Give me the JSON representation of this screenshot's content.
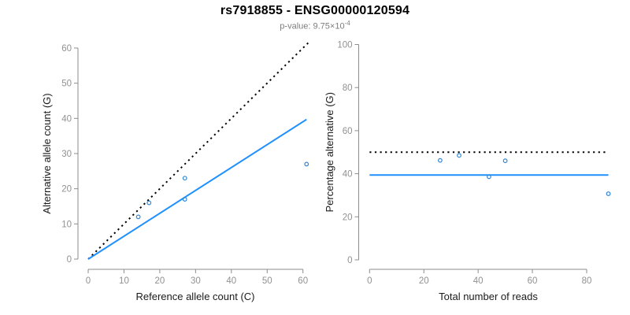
{
  "header": {
    "title": "rs7918855 - ENSG00000120594",
    "subtitle_base": "p-value: 9.75×10",
    "subtitle_exponent": "-4"
  },
  "colors": {
    "accent_blue": "#1E90FF",
    "point_blue": "#2E86D8",
    "dotted_black": "#000000",
    "axis_gray": "#8C8C8C",
    "tick_label_gray": "#919191",
    "axis_title_color": "#1a1a1a",
    "subtitle_gray": "#7d7d7d",
    "background": "#ffffff"
  },
  "chart_data": [
    {
      "type": "scatter",
      "name": "allele-count-panel",
      "xlabel": "Reference allele count (C)",
      "ylabel": "Alternative allele count (G)",
      "xlim": [
        0,
        60
      ],
      "ylim": [
        0,
        60
      ],
      "xticks": [
        0,
        10,
        20,
        30,
        40,
        50,
        60
      ],
      "yticks": [
        0,
        10,
        20,
        30,
        40,
        50,
        60
      ],
      "grid": false,
      "legend": null,
      "points": [
        {
          "x": 14,
          "y": 12
        },
        {
          "x": 17,
          "y": 16
        },
        {
          "x": 27,
          "y": 17
        },
        {
          "x": 27,
          "y": 23
        },
        {
          "x": 61,
          "y": 27
        }
      ],
      "lines": [
        {
          "name": "identity-line",
          "style": "dotted",
          "color_key": "dotted_black",
          "x1": 0,
          "y1": 0,
          "x2": 61.5,
          "y2": 61.5
        },
        {
          "name": "fit-line",
          "style": "solid",
          "color_key": "accent_blue",
          "x1": 0,
          "y1": 0,
          "x2": 61,
          "y2": 39.7
        }
      ]
    },
    {
      "type": "scatter",
      "name": "percentage-panel",
      "xlabel": "Total number of reads",
      "ylabel": "Percentage alternative (G)",
      "xlim": [
        0,
        80
      ],
      "ylim": [
        0,
        100
      ],
      "xticks": [
        0,
        20,
        40,
        60,
        80
      ],
      "yticks": [
        0,
        20,
        40,
        60,
        80,
        100
      ],
      "grid": false,
      "legend": null,
      "points": [
        {
          "x": 26,
          "y": 46.2
        },
        {
          "x": 33,
          "y": 48.5
        },
        {
          "x": 44,
          "y": 38.6
        },
        {
          "x": 50,
          "y": 46.0
        },
        {
          "x": 88,
          "y": 30.7
        }
      ],
      "lines": [
        {
          "name": "expected-50-line",
          "style": "dotted",
          "color_key": "dotted_black",
          "x1": 0,
          "y1": 50,
          "x2": 88,
          "y2": 50
        },
        {
          "name": "fit-line",
          "style": "solid",
          "color_key": "accent_blue",
          "x1": 0,
          "y1": 39.4,
          "x2": 88,
          "y2": 39.4
        }
      ]
    }
  ]
}
